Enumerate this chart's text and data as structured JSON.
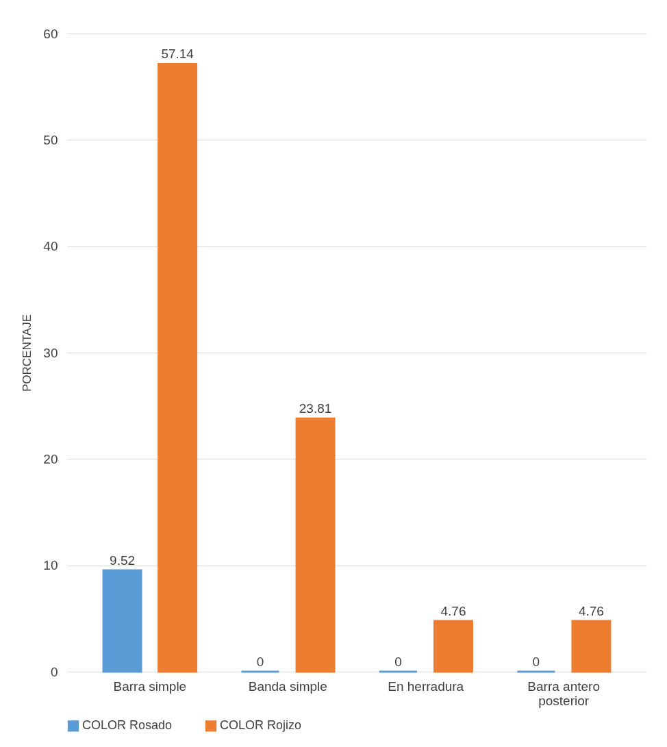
{
  "chart_data": {
    "type": "bar",
    "ylabel": "PORCENTAJE",
    "categories": [
      "Barra simple",
      "Banda simple",
      "En herradura",
      "Barra antero posterior"
    ],
    "series": [
      {
        "name": "COLOR  Rosado",
        "color": "#5b9bd5",
        "values": [
          9.52,
          0,
          0,
          0
        ]
      },
      {
        "name": "COLOR  Rojizo",
        "color": "#ed7d31",
        "values": [
          57.14,
          23.81,
          4.76,
          4.76
        ]
      }
    ],
    "ylim": [
      0,
      60
    ],
    "yticks": [
      0,
      10,
      20,
      30,
      40,
      50,
      60
    ],
    "grid": "y",
    "legend": "bottom",
    "data_labels": true
  }
}
